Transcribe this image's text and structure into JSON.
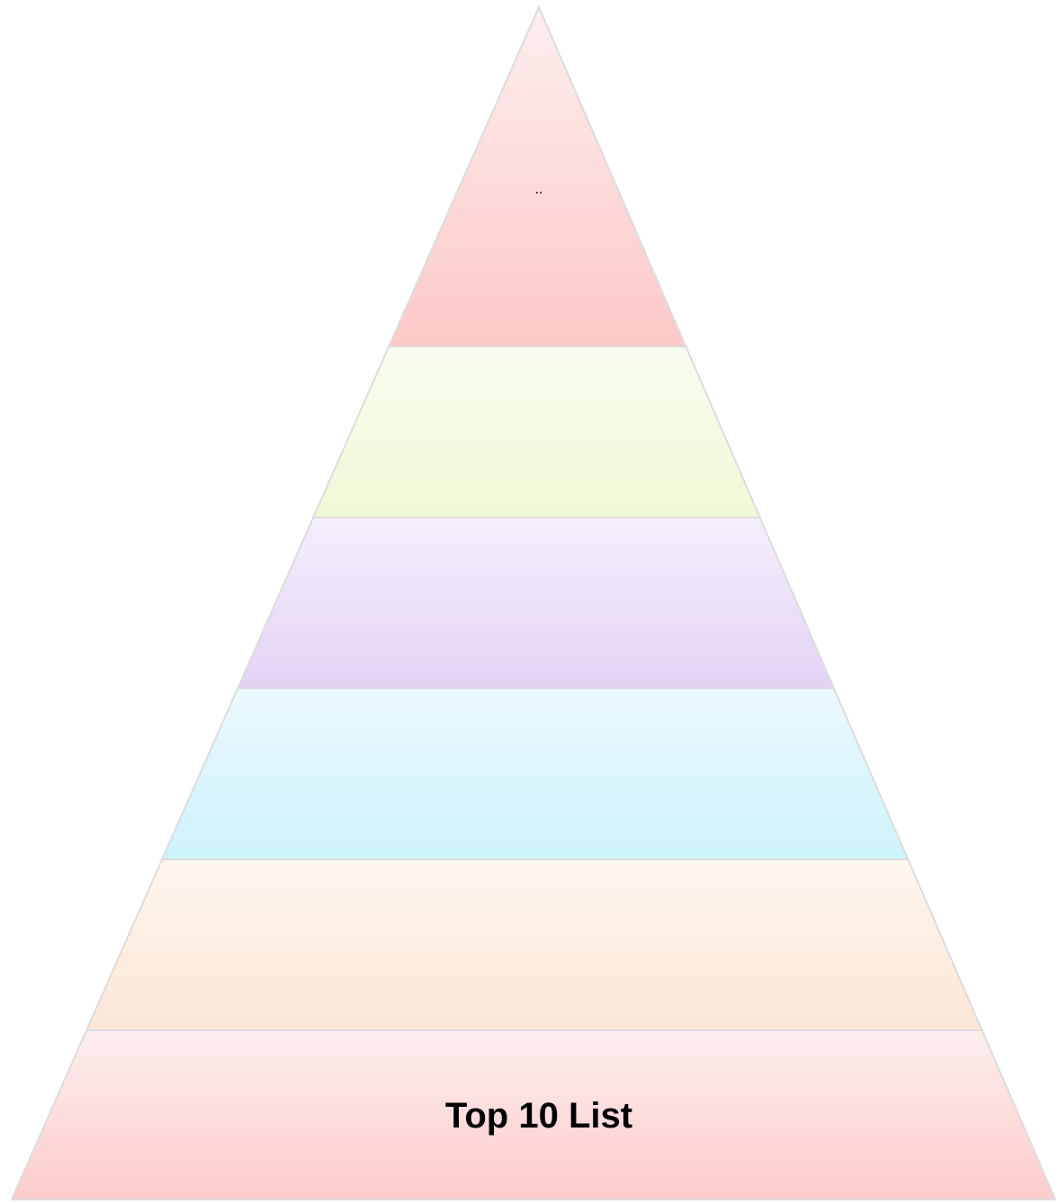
{
  "pyramid": {
    "layers": [
      {
        "label": "..",
        "top_color": "#fdeeee",
        "bottom_color": "#fdc8c8"
      },
      {
        "label": "",
        "top_color": "#f8fcf0",
        "bottom_color": "#eefad6"
      },
      {
        "label": "",
        "top_color": "#f4effc",
        "bottom_color": "#e2d2f5"
      },
      {
        "label": "",
        "top_color": "#ebf9fd",
        "bottom_color": "#cdf2fb"
      },
      {
        "label": "",
        "top_color": "#fef6ee",
        "bottom_color": "#fbe6d6"
      },
      {
        "label": "Top 10 List",
        "top_color": "#fdeeee",
        "bottom_color": "#fdcbcb"
      }
    ],
    "separator_color": "#d9d9d9",
    "outline_color": "#dcdcdc"
  }
}
